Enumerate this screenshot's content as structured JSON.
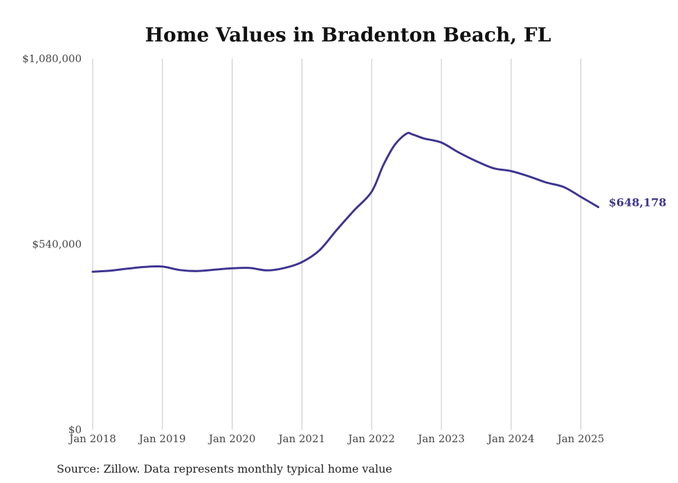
{
  "chart_data": {
    "type": "line",
    "title": "Home Values in Bradenton Beach, FL",
    "xlabel": "",
    "ylabel": "",
    "ylim": [
      0,
      1080000
    ],
    "y_ticks": [
      {
        "value": 0,
        "label": "$0"
      },
      {
        "value": 540000,
        "label": "$540,000"
      },
      {
        "value": 1080000,
        "label": "$1,080,000"
      }
    ],
    "x_ticks": [
      "Jan 2018",
      "Jan 2019",
      "Jan 2020",
      "Jan 2021",
      "Jan 2022",
      "Jan 2023",
      "Jan 2024",
      "Jan 2025"
    ],
    "grid": "vertical",
    "color": "#3d3591",
    "end_label": "$648,178",
    "series": [
      {
        "x": [
          "2018-01",
          "2018-04",
          "2018-07",
          "2018-10",
          "2019-01",
          "2019-04",
          "2019-07",
          "2019-10",
          "2020-01",
          "2020-04",
          "2020-07",
          "2020-10",
          "2021-01",
          "2021-04",
          "2021-07",
          "2021-10",
          "2022-01",
          "2022-03",
          "2022-05",
          "2022-07",
          "2022-08",
          "2022-10",
          "2023-01",
          "2023-04",
          "2023-07",
          "2023-10",
          "2024-01",
          "2024-04",
          "2024-07",
          "2024-10",
          "2025-01",
          "2025-04"
        ],
        "values": [
          460000,
          463000,
          469000,
          474000,
          475000,
          465000,
          462000,
          466000,
          470000,
          471000,
          464000,
          471000,
          488000,
          522000,
          582000,
          639000,
          693000,
          770000,
          830000,
          862000,
          860000,
          848000,
          836000,
          807000,
          782000,
          761000,
          753000,
          738000,
          720000,
          707000,
          678000,
          648178
        ]
      }
    ]
  },
  "source_note": "Source: Zillow. Data represents monthly typical home value"
}
